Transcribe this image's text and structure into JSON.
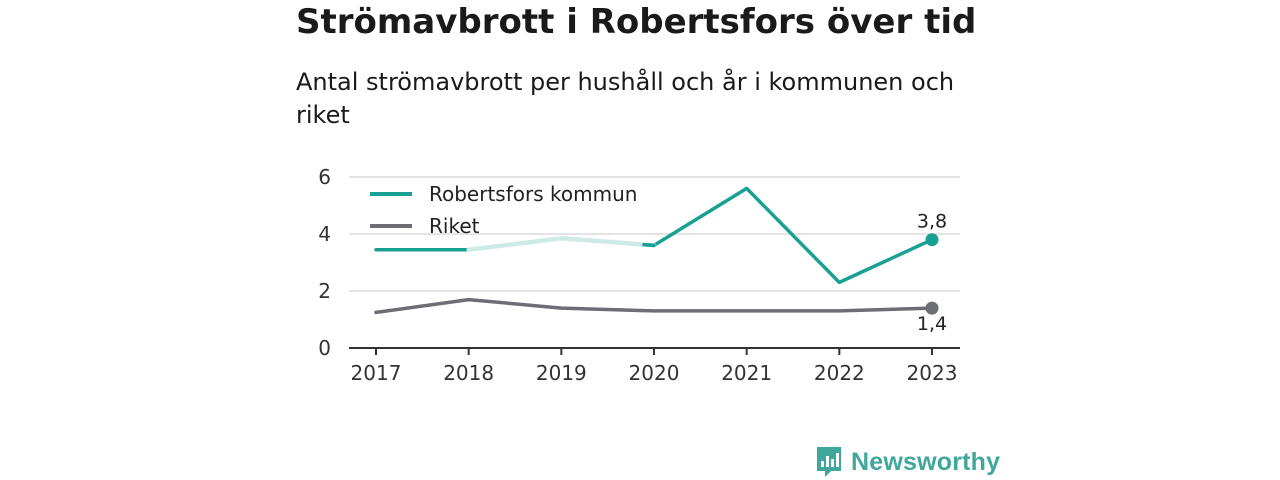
{
  "header": {
    "title": "Strömavbrott i Robertsfors över tid",
    "subtitle": "Antal strömavbrott per hushåll och år i kommunen och riket"
  },
  "brand": {
    "name": "Newsworthy",
    "color": "#3fa79b",
    "icon": "newsworthy-logo-icon"
  },
  "chart_data": {
    "type": "line",
    "title": "Strömavbrott i Robertsfors över tid",
    "subtitle": "Antal strömavbrott per hushåll och år i kommunen och riket",
    "xlabel": "",
    "ylabel": "",
    "x": [
      "2017",
      "2018",
      "2019",
      "2020",
      "2021",
      "2022",
      "2023"
    ],
    "ylim": [
      0,
      6
    ],
    "yticks": [
      "0",
      "2",
      "4",
      "6"
    ],
    "grid": true,
    "legend_position": "top-left",
    "series": [
      {
        "name": "Robertsfors kommun",
        "color": "#1aa093",
        "faded_color": "#cdeae7",
        "values": [
          3.45,
          3.45,
          3.85,
          3.6,
          5.6,
          2.3,
          3.8
        ],
        "end_label": "3,8"
      },
      {
        "name": "Riket",
        "color": "#6d6d75",
        "values": [
          1.25,
          1.7,
          1.4,
          1.3,
          1.3,
          1.3,
          1.4
        ],
        "end_label": "1,4"
      }
    ]
  }
}
